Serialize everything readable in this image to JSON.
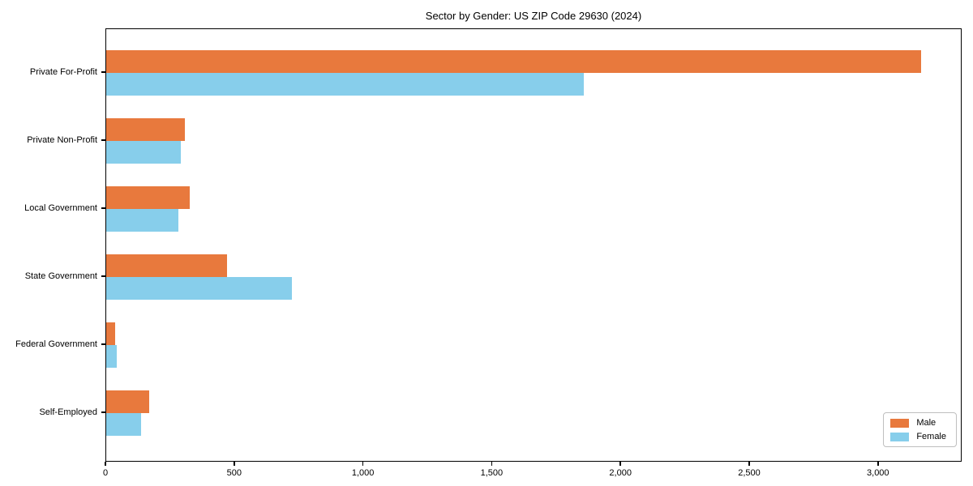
{
  "chart_data": {
    "type": "bar",
    "orientation": "horizontal",
    "title": "Sector by Gender: US ZIP Code 29630 (2024)",
    "xlabel": "",
    "ylabel": "",
    "categories": [
      "Private For-Profit",
      "Private Non-Profit",
      "Local Government",
      "State Government",
      "Federal Government",
      "Self-Employed"
    ],
    "series": [
      {
        "name": "Male",
        "color": "#e8793d",
        "values": [
          3165,
          305,
          325,
          470,
          35,
          166
        ]
      },
      {
        "name": "Female",
        "color": "#87ceeb",
        "values": [
          1855,
          290,
          280,
          720,
          40,
          135
        ]
      }
    ],
    "xlim": [
      0,
      3325
    ],
    "xticks": [
      {
        "value": 0,
        "label": "0"
      },
      {
        "value": 500,
        "label": "500"
      },
      {
        "value": 1000,
        "label": "1,000"
      },
      {
        "value": 1500,
        "label": "1,500"
      },
      {
        "value": 2000,
        "label": "2,000"
      },
      {
        "value": 2500,
        "label": "2,500"
      },
      {
        "value": 3000,
        "label": "3,000"
      }
    ],
    "grid": false,
    "legend_position": "lower right"
  }
}
